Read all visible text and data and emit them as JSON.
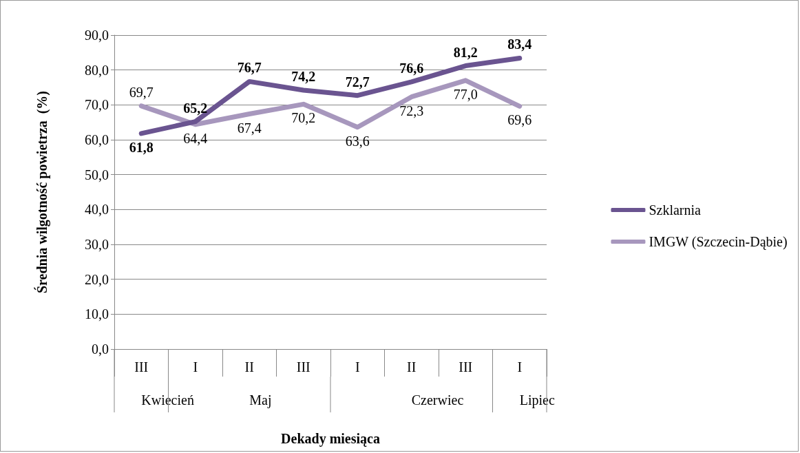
{
  "chart_data": {
    "type": "line",
    "xlabel": "Dekady miesiąca",
    "ylabel": "Średnia wilgotność powietrza  (%)",
    "categories": [
      "III",
      "I",
      "II",
      "III",
      "I",
      "II",
      "III",
      "I"
    ],
    "annotations": [
      "Kwiecień",
      "Maj",
      "Czerwiec",
      "Lipiec"
    ],
    "series": [
      {
        "name": "Szklarnia",
        "color": "#6a5490",
        "values": [
          61.8,
          65.2,
          76.7,
          74.2,
          72.7,
          76.6,
          81.2,
          83.4
        ],
        "value_labels": [
          "61,8",
          "65,2",
          "76,7",
          "74,2",
          "72,7",
          "76,6",
          "81,2",
          "83,4"
        ]
      },
      {
        "name": "IMGW (Szczecin-Dąbie)",
        "color": "#a797bd",
        "values": [
          69.7,
          64.4,
          67.4,
          70.2,
          63.6,
          72.3,
          77.0,
          69.6
        ],
        "value_labels": [
          "69,7",
          "64,4",
          "67,4",
          "70,2",
          "63,6",
          "72,3",
          "77,0",
          "69,6"
        ]
      }
    ],
    "ylim": [
      0,
      90
    ],
    "yticks": [
      {
        "value": 0,
        "label": "0,0"
      },
      {
        "value": 10,
        "label": "10,0"
      },
      {
        "value": 20,
        "label": "20,0"
      },
      {
        "value": 30,
        "label": "30,0"
      },
      {
        "value": 40,
        "label": "40,0"
      },
      {
        "value": 50,
        "label": "50,0"
      },
      {
        "value": 60,
        "label": "60,0"
      },
      {
        "value": 70,
        "label": "70,0"
      },
      {
        "value": 80,
        "label": "80,0"
      },
      {
        "value": 90,
        "label": "90,0"
      }
    ],
    "grid": "y",
    "legend": "right",
    "marker": "none",
    "line_style": "solid"
  }
}
